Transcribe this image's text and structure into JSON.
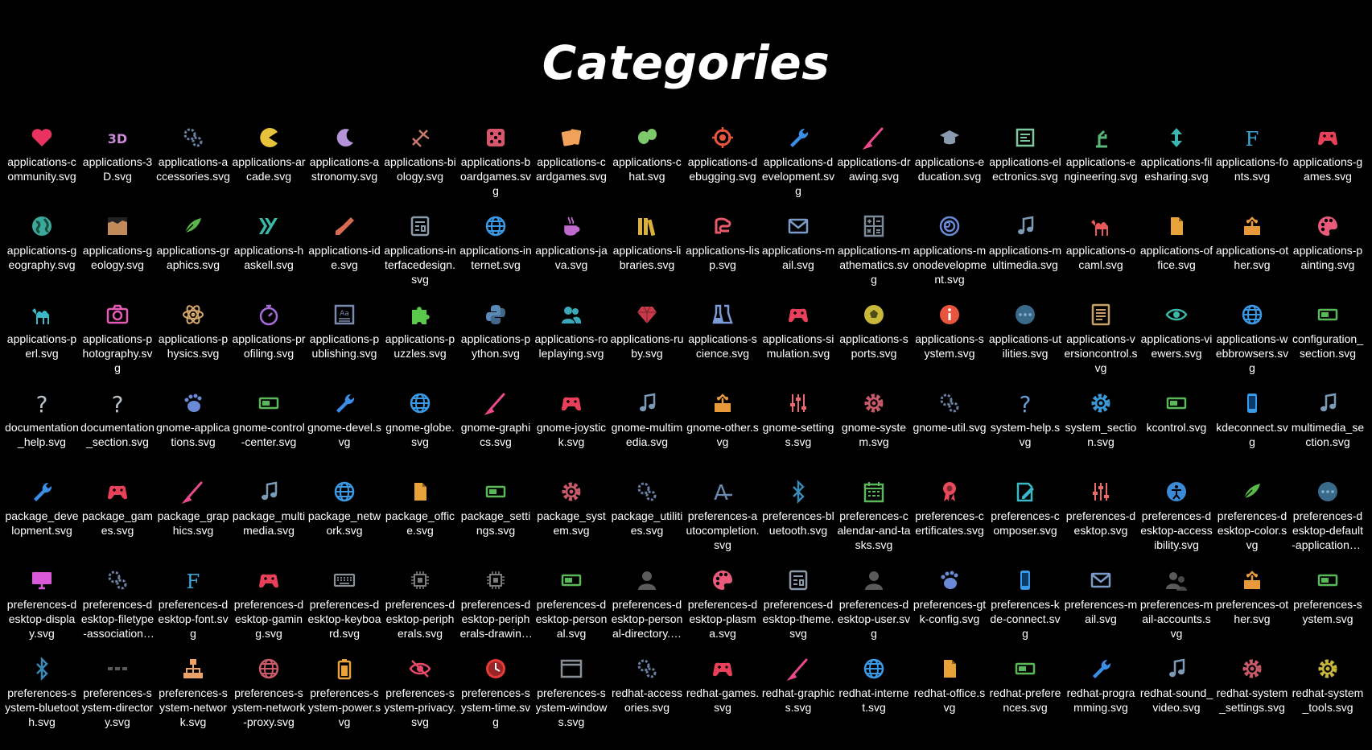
{
  "title": "Categories",
  "icons": [
    {
      "label": "applications-community.svg",
      "icon": "heart-icon",
      "color": "#e8325f"
    },
    {
      "label": "applications-3D.svg",
      "icon": "3d-icon",
      "color": "#c98ad6"
    },
    {
      "label": "applications-accessories.svg",
      "icon": "gears-icon",
      "color": "#6a7fa0"
    },
    {
      "label": "applications-arcade.svg",
      "icon": "pacman-icon",
      "color": "#e8c23a"
    },
    {
      "label": "applications-astronomy.svg",
      "icon": "moon-icon",
      "color": "#b493d8"
    },
    {
      "label": "applications-biology.svg",
      "icon": "dna-icon",
      "color": "#c77a6a"
    },
    {
      "label": "applications-boardgames.svg",
      "icon": "dice-icon",
      "color": "#d9556b"
    },
    {
      "label": "applications-cardgames.svg",
      "icon": "cards-icon",
      "color": "#f0a25a"
    },
    {
      "label": "applications-chat.svg",
      "icon": "chat-bubbles-icon",
      "color": "#7ec96a"
    },
    {
      "label": "applications-debugging.svg",
      "icon": "crosshair-icon",
      "color": "#e8553f"
    },
    {
      "label": "applications-development.svg",
      "icon": "wrench-icon",
      "color": "#3a8ee8"
    },
    {
      "label": "applications-drawing.svg",
      "icon": "brush-icon",
      "color": "#e84a8a"
    },
    {
      "label": "applications-education.svg",
      "icon": "graduation-cap-icon",
      "color": "#8a9ab0"
    },
    {
      "label": "applications-electronics.svg",
      "icon": "circuit-icon",
      "color": "#7ec9a0"
    },
    {
      "label": "applications-engineering.svg",
      "icon": "engineering-icon",
      "color": "#5ab87a"
    },
    {
      "label": "applications-filesharing.svg",
      "icon": "updown-arrows-icon",
      "color": "#3ab8b0"
    },
    {
      "label": "applications-fonts.svg",
      "icon": "font-f-icon",
      "color": "#3aa8d8"
    },
    {
      "label": "applications-games.svg",
      "icon": "gamepad-icon",
      "color": "#e8405a"
    },
    {
      "label": "applications-geography.svg",
      "icon": "earth-icon",
      "color": "#3aa89a"
    },
    {
      "label": "applications-geology.svg",
      "icon": "geology-icon",
      "color": "#c08a5a"
    },
    {
      "label": "applications-graphics.svg",
      "icon": "leaf-brush-icon",
      "color": "#5ab84a"
    },
    {
      "label": "applications-haskell.svg",
      "icon": "haskell-icon",
      "color": "#3ab8a8"
    },
    {
      "label": "applications-ide.svg",
      "icon": "trowel-icon",
      "color": "#d86a50"
    },
    {
      "label": "applications-interfacedesign.svg",
      "icon": "interface-icon",
      "color": "#8a9aa8"
    },
    {
      "label": "applications-internet.svg",
      "icon": "globe-icon",
      "color": "#3a9ae8"
    },
    {
      "label": "applications-java.svg",
      "icon": "java-cup-icon",
      "color": "#c06ad0"
    },
    {
      "label": "applications-libraries.svg",
      "icon": "books-icon",
      "color": "#d8b03a"
    },
    {
      "label": "applications-lisp.svg",
      "icon": "lisp-icon",
      "color": "#e85a6a"
    },
    {
      "label": "applications-mail.svg",
      "icon": "envelope-icon",
      "color": "#7a9ac8"
    },
    {
      "label": "applications-mathematics.svg",
      "icon": "calculator-icon",
      "color": "#7a8a98"
    },
    {
      "label": "applications-monodevelopment.svg",
      "icon": "mono-icon",
      "color": "#6a8ad8"
    },
    {
      "label": "applications-multimedia.svg",
      "icon": "music-note-icon",
      "color": "#7a9ab8"
    },
    {
      "label": "applications-ocaml.svg",
      "icon": "camel-icon",
      "color": "#e85a5a"
    },
    {
      "label": "applications-office.svg",
      "icon": "document-icon",
      "color": "#e8a23a"
    },
    {
      "label": "applications-other.svg",
      "icon": "package-icon",
      "color": "#e89a3a"
    },
    {
      "label": "applications-painting.svg",
      "icon": "palette-icon",
      "color": "#e85a7a"
    },
    {
      "label": "applications-perl.svg",
      "icon": "camel-icon",
      "color": "#3ab8c8"
    },
    {
      "label": "applications-photography.svg",
      "icon": "camera-icon",
      "color": "#e85ab8"
    },
    {
      "label": "applications-physics.svg",
      "icon": "atom-icon",
      "color": "#d8a86a"
    },
    {
      "label": "applications-profiling.svg",
      "icon": "stopwatch-icon",
      "color": "#a86ad8"
    },
    {
      "label": "applications-publishing.svg",
      "icon": "publishing-icon",
      "color": "#7a8ab0"
    },
    {
      "label": "applications-puzzles.svg",
      "icon": "puzzle-icon",
      "color": "#5ac84a"
    },
    {
      "label": "applications-python.svg",
      "icon": "python-icon",
      "color": "#5a8ab8"
    },
    {
      "label": "applications-roleplaying.svg",
      "icon": "people-icon",
      "color": "#3aa8b8"
    },
    {
      "label": "applications-ruby.svg",
      "icon": "gem-icon",
      "color": "#c83a4a"
    },
    {
      "label": "applications-science.svg",
      "icon": "flasks-icon",
      "color": "#7a9ad8"
    },
    {
      "label": "applications-simulation.svg",
      "icon": "gamepad-icon",
      "color": "#e8405a"
    },
    {
      "label": "applications-sports.svg",
      "icon": "ball-icon",
      "color": "#c8b83a"
    },
    {
      "label": "applications-system.svg",
      "icon": "info-icon",
      "color": "#e8553f"
    },
    {
      "label": "applications-utilities.svg",
      "icon": "dots-circle-icon",
      "color": "#3a6a8a"
    },
    {
      "label": "applications-versioncontrol.svg",
      "icon": "list-document-icon",
      "color": "#c8a06a"
    },
    {
      "label": "applications-viewers.svg",
      "icon": "eye-icon",
      "color": "#3ab8a8"
    },
    {
      "label": "applications-webbrowsers.svg",
      "icon": "globe-icon",
      "color": "#3a9ae8"
    },
    {
      "label": "configuration_section.svg",
      "icon": "toggle-panel-icon",
      "color": "#5ab85a"
    },
    {
      "label": "documentation_help.svg",
      "icon": "question-icon",
      "color": "#b8c0c8"
    },
    {
      "label": "documentation_section.svg",
      "icon": "question-icon",
      "color": "#b8c0c8"
    },
    {
      "label": "gnome-applications.svg",
      "icon": "gnome-foot-icon",
      "color": "#6a8ad8"
    },
    {
      "label": "gnome-control-center.svg",
      "icon": "toggle-panel-icon",
      "color": "#5ab85a"
    },
    {
      "label": "gnome-devel.svg",
      "icon": "wrench-icon",
      "color": "#3a8ee8"
    },
    {
      "label": "gnome-globe.svg",
      "icon": "globe-icon",
      "color": "#3a9ae8"
    },
    {
      "label": "gnome-graphics.svg",
      "icon": "brush-icon",
      "color": "#e84a8a"
    },
    {
      "label": "gnome-joystick.svg",
      "icon": "gamepad-icon",
      "color": "#e8405a"
    },
    {
      "label": "gnome-multimedia.svg",
      "icon": "music-note-icon",
      "color": "#7a9ab8"
    },
    {
      "label": "gnome-other.svg",
      "icon": "package-icon",
      "color": "#e89a3a"
    },
    {
      "label": "gnome-settings.svg",
      "icon": "sliders-icon",
      "color": "#e86a6a"
    },
    {
      "label": "gnome-system.svg",
      "icon": "gear-icon",
      "color": "#c85a6a"
    },
    {
      "label": "gnome-util.svg",
      "icon": "gears-icon",
      "color": "#6a7fa0"
    },
    {
      "label": "system-help.svg",
      "icon": "question-icon",
      "color": "#6a9ad8"
    },
    {
      "label": "system_section.svg",
      "icon": "gear-icon",
      "color": "#3a9ad8"
    },
    {
      "label": "kcontrol.svg",
      "icon": "toggle-panel-icon",
      "color": "#5ab85a"
    },
    {
      "label": "kdeconnect.svg",
      "icon": "phone-icon",
      "color": "#3a9ae8"
    },
    {
      "label": "multimedia_section.svg",
      "icon": "music-note-icon",
      "color": "#7a9ab8"
    },
    {
      "label": "package_development.svg",
      "icon": "wrench-icon",
      "color": "#3a8ee8"
    },
    {
      "label": "package_games.svg",
      "icon": "gamepad-icon",
      "color": "#e8405a"
    },
    {
      "label": "package_graphics.svg",
      "icon": "brush-icon",
      "color": "#e84a8a"
    },
    {
      "label": "package_multimedia.svg",
      "icon": "music-note-icon",
      "color": "#7a9ab8"
    },
    {
      "label": "package_network.svg",
      "icon": "globe-icon",
      "color": "#3a9ae8"
    },
    {
      "label": "package_office.svg",
      "icon": "document-icon",
      "color": "#e8a23a"
    },
    {
      "label": "package_settings.svg",
      "icon": "toggle-panel-icon",
      "color": "#5ab85a"
    },
    {
      "label": "package_system.svg",
      "icon": "gear-icon",
      "color": "#c85a6a"
    },
    {
      "label": "package_utilities.svg",
      "icon": "gears-icon",
      "color": "#6a7fa0"
    },
    {
      "label": "preferences-autocompletion.svg",
      "icon": "autocomplete-a-icon",
      "color": "#6a8ab0"
    },
    {
      "label": "preferences-bluetooth.svg",
      "icon": "bluetooth-icon",
      "color": "#3a8ab8"
    },
    {
      "label": "preferences-calendar-and-tasks.svg",
      "icon": "calendar-icon",
      "color": "#5ab85a"
    },
    {
      "label": "preferences-certificates.svg",
      "icon": "certificate-ribbon-icon",
      "color": "#e84a5a"
    },
    {
      "label": "preferences-composer.svg",
      "icon": "compose-icon",
      "color": "#3ab8c8"
    },
    {
      "label": "preferences-desktop.svg",
      "icon": "sliders-icon",
      "color": "#e86a6a"
    },
    {
      "label": "preferences-desktop-accessibility.svg",
      "icon": "accessibility-icon",
      "color": "#3a8ad8"
    },
    {
      "label": "preferences-desktop-color.svg",
      "icon": "leaf-brush-icon",
      "color": "#5ab84a"
    },
    {
      "label": "preferences-desktop-default-applications.svg",
      "icon": "dots-circle-icon",
      "color": "#3a6a8a"
    },
    {
      "label": "preferences-desktop-display.svg",
      "icon": "monitor-icon",
      "color": "#d85ad8"
    },
    {
      "label": "preferences-desktop-filetype-association.svg",
      "icon": "gears-icon",
      "color": "#6a7fa0"
    },
    {
      "label": "preferences-desktop-font.svg",
      "icon": "font-f-icon",
      "color": "#3aa8d8"
    },
    {
      "label": "preferences-desktop-gaming.svg",
      "icon": "gamepad-icon",
      "color": "#e8405a"
    },
    {
      "label": "preferences-desktop-keyboard.svg",
      "icon": "keyboard-icon",
      "color": "#8a9098"
    },
    {
      "label": "preferences-desktop-peripherals.svg",
      "icon": "chip-icon",
      "color": "#7a7a7a"
    },
    {
      "label": "preferences-desktop-peripherals-drawing-tablet.svg",
      "icon": "chip-icon",
      "color": "#7a7a7a"
    },
    {
      "label": "preferences-desktop-personal.svg",
      "icon": "toggle-panel-icon",
      "color": "#5ab85a"
    },
    {
      "label": "preferences-desktop-personal-directory.svg",
      "icon": "user-icon",
      "color": "#5a5a5a"
    },
    {
      "label": "preferences-desktop-plasma.svg",
      "icon": "palette-icon",
      "color": "#e85a7a"
    },
    {
      "label": "preferences-desktop-theme.svg",
      "icon": "interface-icon",
      "color": "#8a9aa8"
    },
    {
      "label": "preferences-desktop-user.svg",
      "icon": "user-icon",
      "color": "#5a5a5a"
    },
    {
      "label": "preferences-gtk-config.svg",
      "icon": "gnome-foot-icon",
      "color": "#6a8ad8"
    },
    {
      "label": "preferences-kde-connect.svg",
      "icon": "phone-icon",
      "color": "#3a9ae8"
    },
    {
      "label": "preferences-mail.svg",
      "icon": "envelope-icon",
      "color": "#7a9ac8"
    },
    {
      "label": "preferences-mail-accounts.svg",
      "icon": "users-icon",
      "color": "#5a5a5a"
    },
    {
      "label": "preferences-other.svg",
      "icon": "package-icon",
      "color": "#e89a3a"
    },
    {
      "label": "preferences-system.svg",
      "icon": "toggle-panel-icon",
      "color": "#5ab85a"
    },
    {
      "label": "preferences-system-bluetooth.svg",
      "icon": "bluetooth-icon",
      "color": "#3a8ab8"
    },
    {
      "label": "preferences-system-directory.svg",
      "icon": "dots-row-icon",
      "color": "#5a5a5a"
    },
    {
      "label": "preferences-system-network.svg",
      "icon": "network-tree-icon",
      "color": "#e8a26a"
    },
    {
      "label": "preferences-system-network-proxy.svg",
      "icon": "globe-icon",
      "color": "#c85a6a"
    },
    {
      "label": "preferences-system-power.svg",
      "icon": "battery-icon",
      "color": "#e8a23a"
    },
    {
      "label": "preferences-system-privacy.svg",
      "icon": "eye-slash-icon",
      "color": "#e84a6a"
    },
    {
      "label": "preferences-system-time.svg",
      "icon": "clock-icon",
      "color": "#e83a3a"
    },
    {
      "label": "preferences-system-windows.svg",
      "icon": "window-icon",
      "color": "#8a9098"
    },
    {
      "label": "redhat-accessories.svg",
      "icon": "gears-icon",
      "color": "#6a7fa0"
    },
    {
      "label": "redhat-games.svg",
      "icon": "gamepad-icon",
      "color": "#e8405a"
    },
    {
      "label": "redhat-graphics.svg",
      "icon": "brush-icon",
      "color": "#e84a8a"
    },
    {
      "label": "redhat-internet.svg",
      "icon": "globe-icon",
      "color": "#3a9ae8"
    },
    {
      "label": "redhat-office.svg",
      "icon": "document-icon",
      "color": "#e8a23a"
    },
    {
      "label": "redhat-preferences.svg",
      "icon": "toggle-panel-icon",
      "color": "#5ab85a"
    },
    {
      "label": "redhat-programming.svg",
      "icon": "wrench-icon",
      "color": "#3a8ee8"
    },
    {
      "label": "redhat-sound_video.svg",
      "icon": "music-note-icon",
      "color": "#7a9ab8"
    },
    {
      "label": "redhat-system_settings.svg",
      "icon": "gear-icon",
      "color": "#c85a6a"
    },
    {
      "label": "redhat-system_tools.svg",
      "icon": "gear-icon",
      "color": "#c8b83a"
    }
  ]
}
